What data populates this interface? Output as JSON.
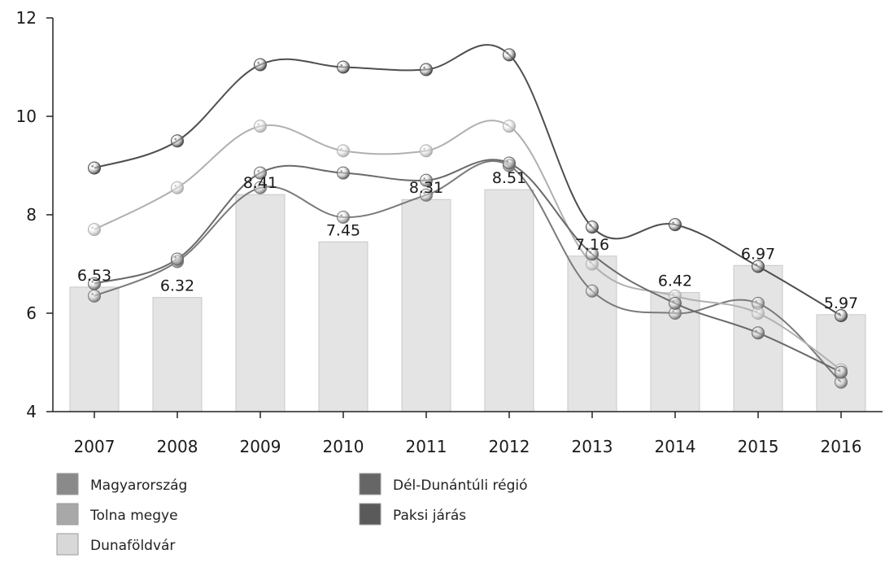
{
  "chart_data": {
    "type": "bar",
    "categories": [
      "2007",
      "2008",
      "2009",
      "2010",
      "2011",
      "2012",
      "2013",
      "2014",
      "2015",
      "2016"
    ],
    "ylim": [
      4,
      12
    ],
    "yticks": [
      "4",
      "6",
      "8",
      "10",
      "12"
    ],
    "grid": false,
    "legend_position": "bottom",
    "bar_series": {
      "name": "Dunaföldvár",
      "values": [
        6.53,
        6.32,
        8.41,
        7.45,
        8.31,
        8.51,
        7.16,
        6.42,
        6.97,
        5.97
      ],
      "labels": [
        "6.53",
        "6.32",
        "8.41",
        "7.45",
        "8.31",
        "8.51",
        "7.16",
        "6.42",
        "6.97",
        "5.97"
      ],
      "color": "#e4e4e4"
    },
    "line_series": [
      {
        "name": "Magyarország",
        "values": [
          6.35,
          7.05,
          8.55,
          7.95,
          8.4,
          9.0,
          6.45,
          6.0,
          6.2,
          4.6
        ],
        "color": "#7a7a7a"
      },
      {
        "name": "Tolna megye",
        "values": [
          7.7,
          8.55,
          9.8,
          9.3,
          9.3,
          9.8,
          7.0,
          6.35,
          6.0,
          4.85
        ],
        "color": "#b0b0b0"
      },
      {
        "name": "Dél-Dunántúli régió",
        "values": [
          6.6,
          7.1,
          8.85,
          8.85,
          8.7,
          9.05,
          7.2,
          6.2,
          5.6,
          4.8
        ],
        "color": "#6a6a6a"
      },
      {
        "name": "Paksi járás",
        "values": [
          8.95,
          9.5,
          11.05,
          11.0,
          10.95,
          11.25,
          7.75,
          7.8,
          6.95,
          5.95
        ],
        "color": "#4e4e4e"
      }
    ],
    "legend": [
      {
        "name": "Magyarország",
        "color": "#8a8a8a"
      },
      {
        "name": "Dél-Dunántúli régió",
        "color": "#666666"
      },
      {
        "name": "Tolna megye",
        "color": "#a8a8a8"
      },
      {
        "name": "Paksi járás",
        "color": "#5a5a5a"
      },
      {
        "name": "Dunaföldvár",
        "color": "#d8d8d8"
      }
    ]
  }
}
